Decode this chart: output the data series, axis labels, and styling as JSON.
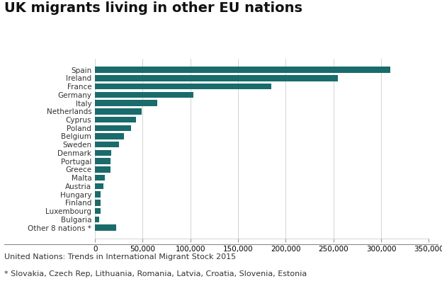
{
  "title": "UK migrants living in other EU nations",
  "categories": [
    "Spain",
    "Ireland",
    "France",
    "Germany",
    "Italy",
    "Netherlands",
    "Cyprus",
    "Poland",
    "Belgium",
    "Sweden",
    "Denmark",
    "Portugal",
    "Greece",
    "Malta",
    "Austria",
    "Hungary",
    "Finland",
    "Luxembourg",
    "Bulgaria",
    "Other 8 nations *"
  ],
  "values": [
    310000,
    255000,
    185000,
    103000,
    65000,
    49000,
    43000,
    38000,
    30000,
    25000,
    17000,
    16000,
    16000,
    10000,
    9000,
    5500,
    5500,
    5500,
    4500,
    22000
  ],
  "bar_color": "#1a6b6b",
  "background_color": "#ffffff",
  "source_text": "United Nations: Trends in International Migrant Stock 2015",
  "footnote_text": "* Slovakia, Czech Rep, Lithuania, Romania, Latvia, Croatia, Slovenia, Estonia",
  "xlim": [
    0,
    350000
  ],
  "xtick_values": [
    0,
    50000,
    100000,
    150000,
    200000,
    250000,
    300000,
    350000
  ],
  "title_fontsize": 14,
  "label_fontsize": 7.5,
  "tick_fontsize": 7.5,
  "source_fontsize": 8
}
